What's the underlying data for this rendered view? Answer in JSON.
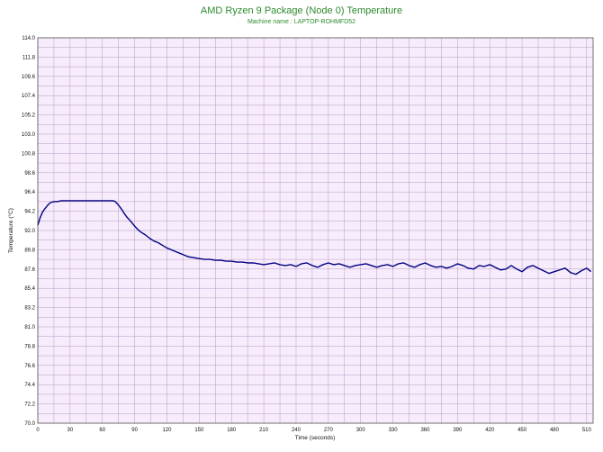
{
  "chart_data": {
    "type": "line",
    "title": "AMD Ryzen 9 Package (Node 0) Temperature",
    "subtitle": "Machine name : LAPTOP-ROHMFD52",
    "xlabel": "Time (seconds)",
    "ylabel": "Temperature (°C)",
    "xlim": [
      0,
      516
    ],
    "ylim": [
      70.0,
      114.0
    ],
    "x_ticks": [
      "0",
      "30",
      "60",
      "90",
      "120",
      "150",
      "180",
      "210",
      "240",
      "270",
      "300",
      "330",
      "360",
      "390",
      "420",
      "450",
      "480",
      "510"
    ],
    "y_ticks": [
      "70.0",
      "72.2",
      "74.4",
      "76.6",
      "78.8",
      "81.0",
      "83.2",
      "85.4",
      "87.6",
      "89.8",
      "92.0",
      "94.2",
      "96.4",
      "98.6",
      "100.8",
      "103.0",
      "105.2",
      "107.4",
      "109.6",
      "111.8",
      "114.0"
    ],
    "grid": true,
    "colors": {
      "line": "#000080",
      "plot_bg": "#f7ecfb",
      "grid": "#b79ac3",
      "title": "#2e8b2e"
    },
    "series": [
      {
        "x": [
          0,
          2,
          4,
          6,
          8,
          10,
          12,
          15,
          18,
          22,
          26,
          30,
          40,
          50,
          60,
          65,
          70,
          72,
          75,
          78,
          80,
          83,
          86,
          88,
          90,
          93,
          96,
          100,
          104,
          108,
          112,
          116,
          120,
          124,
          128,
          132,
          136,
          140,
          145,
          150,
          155,
          160,
          165,
          170,
          175,
          180,
          185,
          190,
          195,
          200,
          205,
          210,
          215,
          220,
          225,
          230,
          235,
          240,
          245,
          250,
          255,
          260,
          265,
          270,
          275,
          280,
          285,
          290,
          295,
          300,
          305,
          310,
          315,
          320,
          325,
          330,
          335,
          340,
          345,
          350,
          355,
          360,
          365,
          370,
          375,
          380,
          385,
          390,
          395,
          400,
          405,
          410,
          415,
          420,
          425,
          430,
          435,
          440,
          445,
          450,
          455,
          460,
          465,
          470,
          475,
          480,
          485,
          490,
          495,
          500,
          505,
          510,
          514
        ],
        "values": [
          92.6,
          93.4,
          94.0,
          94.4,
          94.7,
          95.0,
          95.2,
          95.3,
          95.3,
          95.4,
          95.4,
          95.4,
          95.4,
          95.4,
          95.4,
          95.4,
          95.4,
          95.3,
          94.9,
          94.4,
          94.0,
          93.5,
          93.1,
          92.8,
          92.5,
          92.1,
          91.8,
          91.5,
          91.1,
          90.8,
          90.6,
          90.3,
          90.0,
          89.8,
          89.6,
          89.4,
          89.2,
          89.0,
          88.9,
          88.8,
          88.7,
          88.7,
          88.6,
          88.6,
          88.5,
          88.5,
          88.4,
          88.4,
          88.3,
          88.3,
          88.2,
          88.1,
          88.2,
          88.3,
          88.1,
          88.0,
          88.1,
          87.9,
          88.2,
          88.3,
          88.0,
          87.8,
          88.1,
          88.3,
          88.1,
          88.2,
          88.0,
          87.8,
          88.0,
          88.1,
          88.2,
          88.0,
          87.8,
          88.0,
          88.1,
          87.9,
          88.2,
          88.3,
          88.0,
          87.8,
          88.1,
          88.3,
          88.0,
          87.8,
          87.9,
          87.7,
          87.9,
          88.2,
          88.0,
          87.7,
          87.6,
          88.0,
          87.9,
          88.1,
          87.8,
          87.5,
          87.6,
          88.0,
          87.6,
          87.3,
          87.8,
          88.0,
          87.7,
          87.4,
          87.1,
          87.3,
          87.5,
          87.7,
          87.2,
          87.0,
          87.4,
          87.7,
          87.3
        ]
      }
    ]
  }
}
